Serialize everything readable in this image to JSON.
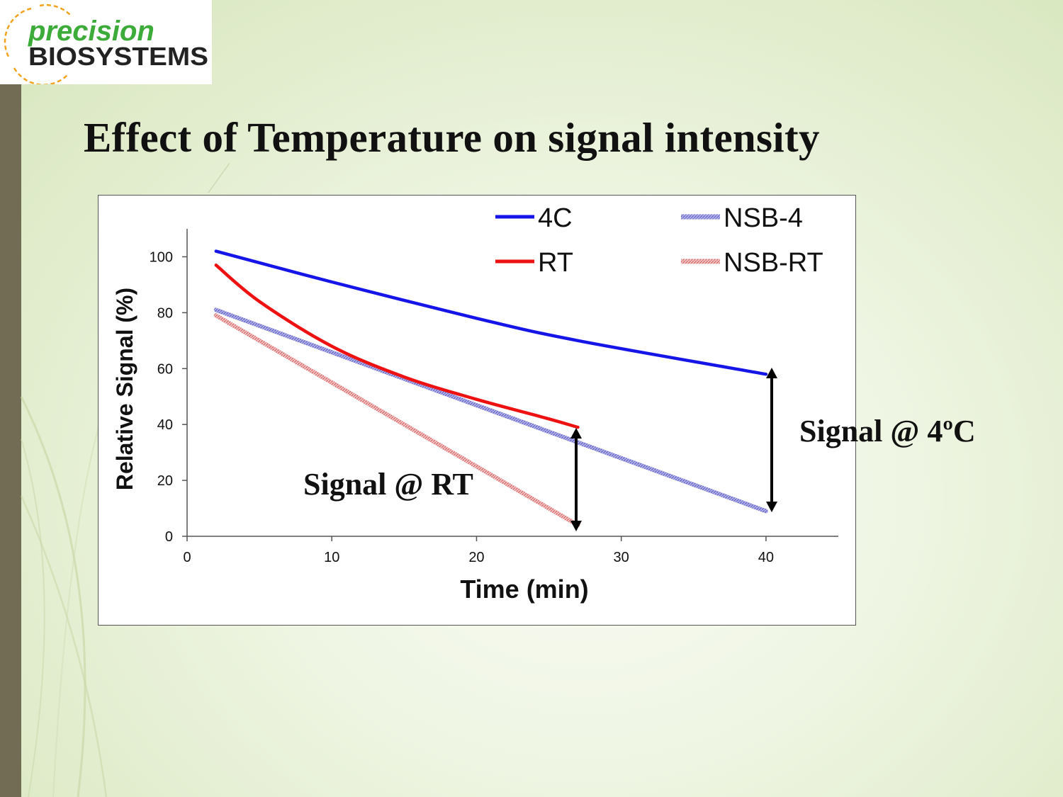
{
  "logo": {
    "line1": "precision",
    "line2": "BIOSYSTEMS"
  },
  "slide": {
    "title": "Effect of Temperature on signal intensity"
  },
  "annotations": {
    "signal_rt": "Signal @ RT",
    "signal_4c": "Signal @ 4ºC"
  },
  "colors": {
    "sidebar": "#716c53",
    "logo_green": "#3cab3a",
    "logo_orange": "#f3a21c"
  },
  "chart_data": {
    "type": "line",
    "xlabel": "Time (min)",
    "ylabel": "Relative Signal (%)",
    "xlim": [
      0,
      45
    ],
    "ylim": [
      0,
      110
    ],
    "xticks": [
      0,
      10,
      20,
      30,
      40
    ],
    "yticks": [
      0,
      20,
      40,
      60,
      80,
      100
    ],
    "grid": false,
    "legend_position": "top-right",
    "series": [
      {
        "name": "4C",
        "color": "#1515e8",
        "style": "solid",
        "x": [
          2,
          10,
          20,
          27,
          40
        ],
        "y": [
          102,
          91,
          78,
          70,
          58
        ]
      },
      {
        "name": "RT",
        "color": "#ee1111",
        "style": "solid",
        "x": [
          2,
          5,
          10,
          15,
          20,
          25,
          27
        ],
        "y": [
          97,
          84,
          68,
          57,
          49,
          42,
          39
        ]
      },
      {
        "name": "NSB-4",
        "color": "#8a8ad8",
        "style": "textured",
        "x": [
          2,
          40
        ],
        "y": [
          81,
          9
        ]
      },
      {
        "name": "NSB-RT",
        "color": "#e8a3a3",
        "style": "textured",
        "x": [
          2,
          27
        ],
        "y": [
          79,
          4
        ]
      }
    ]
  }
}
